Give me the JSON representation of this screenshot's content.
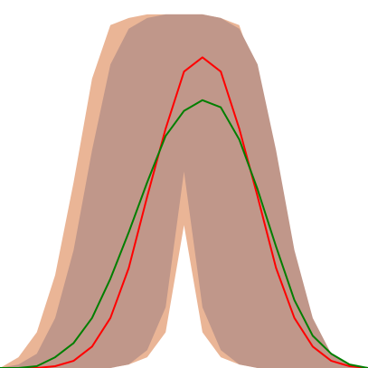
{
  "chart_data": {
    "type": "area",
    "title": "",
    "xlabel": "",
    "ylabel": "",
    "grid": false,
    "legend": "none",
    "xlim": [
      0,
      20
    ],
    "ylim": [
      0,
      1
    ],
    "x": [
      0,
      1,
      2,
      3,
      4,
      5,
      6,
      7,
      8,
      9,
      10,
      11,
      12,
      13,
      14,
      15,
      16,
      17,
      18,
      19,
      20
    ],
    "bands": [
      {
        "color": "#eab596",
        "upper": [
          0.0,
          0.03,
          0.1,
          0.26,
          0.52,
          0.81,
          0.96,
          0.98,
          0.99,
          0.99,
          0.99,
          0.99,
          0.98,
          0.96,
          0.81,
          0.52,
          0.26,
          0.1,
          0.03,
          0.01,
          0.0
        ],
        "lower": [
          0.0,
          0.0,
          0.0,
          0.0,
          0.0,
          0.0,
          0.0,
          0.01,
          0.03,
          0.1,
          0.4,
          0.1,
          0.03,
          0.01,
          0.0,
          0.0,
          0.0,
          0.0,
          0.0,
          0.0,
          0.0
        ]
      },
      {
        "color": "#c0978a",
        "upper": [
          0.0,
          0.01,
          0.04,
          0.14,
          0.33,
          0.61,
          0.85,
          0.95,
          0.98,
          0.99,
          0.99,
          0.99,
          0.98,
          0.95,
          0.85,
          0.61,
          0.33,
          0.14,
          0.04,
          0.01,
          0.0
        ],
        "lower": [
          0.0,
          0.0,
          0.0,
          0.0,
          0.0,
          0.0,
          0.0,
          0.01,
          0.05,
          0.17,
          0.55,
          0.17,
          0.05,
          0.01,
          0.0,
          0.0,
          0.0,
          0.0,
          0.0,
          0.0,
          0.0
        ]
      }
    ],
    "series": [
      {
        "color": "#ff0000",
        "values": [
          0.0,
          0.0,
          0.0,
          0.005,
          0.02,
          0.06,
          0.14,
          0.28,
          0.48,
          0.67,
          0.83,
          0.87,
          0.83,
          0.67,
          0.48,
          0.28,
          0.14,
          0.06,
          0.02,
          0.005,
          0.0
        ]
      },
      {
        "color": "#007f00",
        "values": [
          0.0,
          0.0,
          0.005,
          0.03,
          0.07,
          0.14,
          0.25,
          0.38,
          0.52,
          0.65,
          0.72,
          0.75,
          0.73,
          0.64,
          0.5,
          0.34,
          0.19,
          0.09,
          0.04,
          0.01,
          0.0
        ]
      }
    ]
  }
}
